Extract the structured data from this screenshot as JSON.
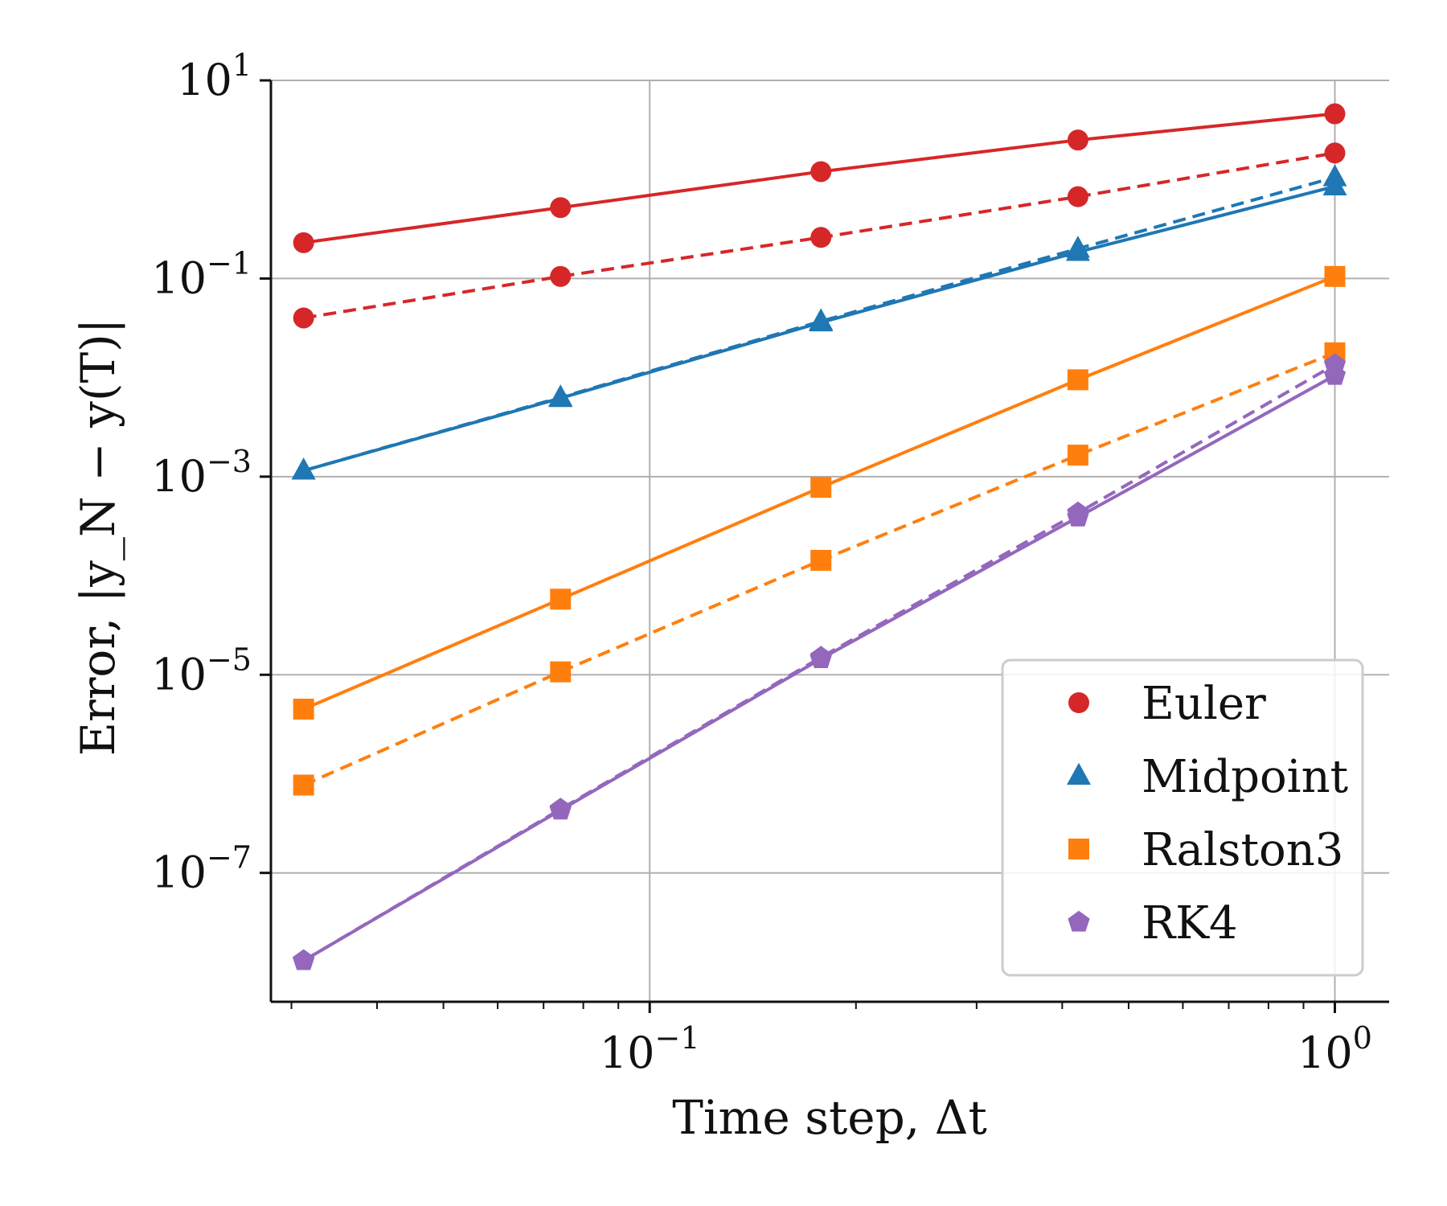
{
  "chart_data": {
    "type": "line",
    "xlabel": "Time step, Δt",
    "ylabel": "Error, |y_N − y(T)|",
    "x_scale": "log",
    "y_scale": "log",
    "xlim": [
      0.028,
      1.2
    ],
    "ylim": [
      5e-09,
      10
    ],
    "x_ticks": [
      {
        "value": 0.1,
        "base": "10",
        "exp": "−1"
      },
      {
        "value": 1,
        "base": "10",
        "exp": "0"
      }
    ],
    "y_ticks": [
      {
        "value": 10,
        "base": "10",
        "exp": "1"
      },
      {
        "value": 0.1,
        "base": "10",
        "exp": "−1"
      },
      {
        "value": 0.001,
        "base": "10",
        "exp": "−3"
      },
      {
        "value": 1e-05,
        "base": "10",
        "exp": "−5"
      },
      {
        "value": 1e-07,
        "base": "10",
        "exp": "−7"
      }
    ],
    "grid": true,
    "legend_position": "bottom-right",
    "x": [
      0.03125,
      0.0741,
      0.1778,
      0.4217,
      1.0
    ],
    "series": [
      {
        "name": "Euler",
        "color": "#d62728",
        "marker": "circle",
        "linestyle": "solid",
        "values": [
          0.23,
          0.52,
          1.2,
          2.5,
          4.6
        ]
      },
      {
        "name": "",
        "color": "#d62728",
        "marker": "circle",
        "linestyle": "dashed",
        "values": [
          0.04,
          0.105,
          0.26,
          0.67,
          1.85
        ]
      },
      {
        "name": "Midpoint",
        "color": "#1f77b4",
        "marker": "triangle",
        "linestyle": "solid",
        "values": [
          0.00115,
          0.0062,
          0.036,
          0.185,
          0.85
        ]
      },
      {
        "name": "",
        "color": "#1f77b4",
        "marker": "triangle",
        "linestyle": "dashed",
        "values": [
          0.00115,
          0.0063,
          0.037,
          0.2,
          1.05
        ]
      },
      {
        "name": "Ralston3",
        "color": "#ff7f0e",
        "marker": "square",
        "linestyle": "solid",
        "values": [
          4.5e-06,
          5.8e-05,
          0.00078,
          0.0095,
          0.105
        ]
      },
      {
        "name": "",
        "color": "#ff7f0e",
        "marker": "square",
        "linestyle": "dashed",
        "values": [
          7.7e-07,
          1.07e-05,
          0.000143,
          0.00165,
          0.0178
        ]
      },
      {
        "name": "RK4",
        "color": "#9467bd",
        "marker": "pentagon",
        "linestyle": "solid",
        "values": [
          1.3e-08,
          4.3e-07,
          1.45e-05,
          0.00039,
          0.0105
        ]
      },
      {
        "name": "",
        "color": "#9467bd",
        "marker": "pentagon",
        "linestyle": "dashed",
        "values": [
          1.3e-08,
          4.4e-07,
          1.5e-05,
          0.00043,
          0.0135
        ]
      }
    ]
  }
}
